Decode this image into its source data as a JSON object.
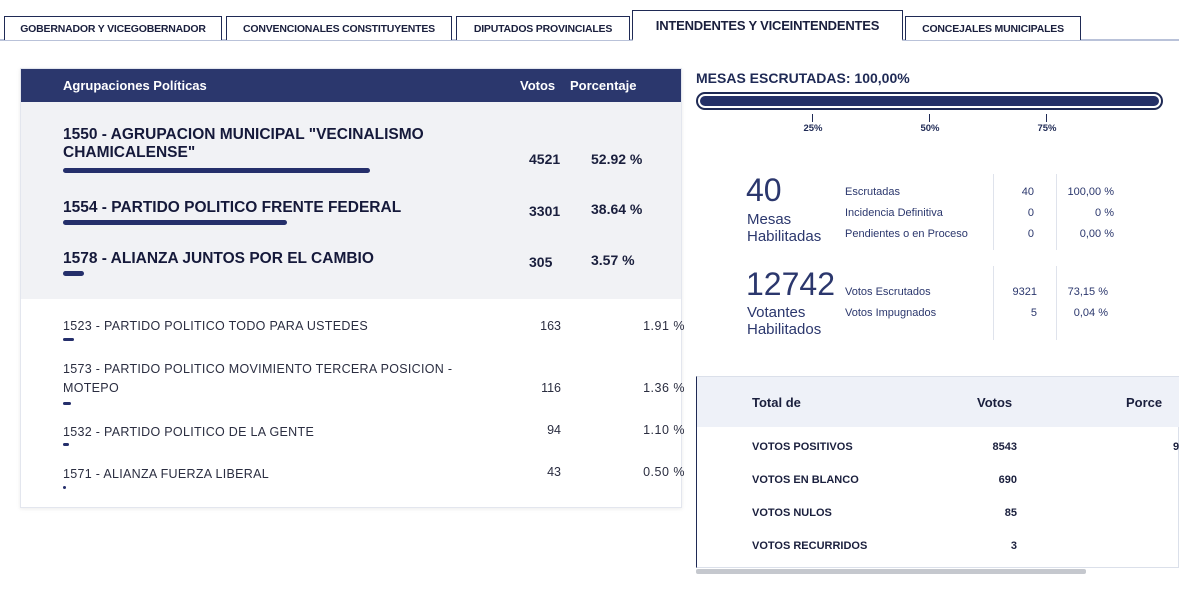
{
  "tabs": [
    {
      "label": "GOBERNADOR Y VICEGOBERNADOR",
      "active": false
    },
    {
      "label": "CONVENCIONALES CONSTITUYENTES",
      "active": false
    },
    {
      "label": "DIPUTADOS PROVINCIALES",
      "active": false
    },
    {
      "label": "INTENDENTES Y VICEINTENDENTES",
      "active": true
    },
    {
      "label": "CONCEJALES MUNICIPALES",
      "active": false
    }
  ],
  "results": {
    "headers": {
      "party": "Agrupaciones Políticas",
      "votes": "Votos",
      "percent": "Porcentaje"
    },
    "top": [
      {
        "name": "1550 - AGRUPACION MUNICIPAL \"VECINALISMO CHAMICALENSE\"",
        "votes": "4521",
        "percent": "52.92 %",
        "share": 52.92
      },
      {
        "name": "1554 - PARTIDO POLITICO FRENTE FEDERAL",
        "votes": "3301",
        "percent": "38.64 %",
        "share": 38.64
      },
      {
        "name": "1578 - ALIANZA JUNTOS POR EL CAMBIO",
        "votes": "305",
        "percent": "3.57 %",
        "share": 3.57
      }
    ],
    "others": [
      {
        "name": "1523 - PARTIDO POLITICO TODO PARA USTEDES",
        "votes": "163",
        "percent": "1.91 %",
        "share": 1.91
      },
      {
        "name": "1573 - PARTIDO POLITICO MOVIMIENTO TERCERA POSICION - MOTEPO",
        "votes": "116",
        "percent": "1.36 %",
        "share": 1.36
      },
      {
        "name": "1532 - PARTIDO POLITICO DE LA GENTE",
        "votes": "94",
        "percent": "1.10 %",
        "share": 1.1
      },
      {
        "name": "1571 - ALIANZA FUERZA LIBERAL",
        "votes": "43",
        "percent": "0.50 %",
        "share": 0.5
      }
    ]
  },
  "mesas": {
    "title": "MESAS ESCRUTADAS: 100,00%",
    "progress": 100,
    "ticks": [
      "25%",
      "50%",
      "75%"
    ]
  },
  "stats": {
    "mesas_total": "40",
    "mesas_label": "Mesas Habilitadas",
    "mesas_rows": [
      {
        "label": "Escrutadas",
        "value": "40",
        "percent": "100,00 %"
      },
      {
        "label": "Incidencia Definitiva",
        "value": "0",
        "percent": "0 %"
      },
      {
        "label": "Pendientes o en Proceso",
        "value": "0",
        "percent": "0,00 %"
      }
    ],
    "votantes_total": "12742",
    "votantes_label": "Votantes Habilitados",
    "votantes_rows": [
      {
        "label": "Votos Escrutados",
        "value": "9321",
        "percent": "73,15 %"
      },
      {
        "label": "Votos Impugnados",
        "value": "5",
        "percent": "0,04 %"
      }
    ]
  },
  "totals": {
    "headers": {
      "type": "Total de",
      "votes": "Votos",
      "percent": "Porce"
    },
    "rows": [
      {
        "label": "VOTOS POSITIVOS",
        "votes": "8543",
        "percent": "9"
      },
      {
        "label": "VOTOS EN BLANCO",
        "votes": "690",
        "percent": ""
      },
      {
        "label": "VOTOS NULOS",
        "votes": "85",
        "percent": ""
      },
      {
        "label": "VOTOS RECURRIDOS",
        "votes": "3",
        "percent": ""
      }
    ]
  },
  "colors": {
    "accent": "#2b376d",
    "bar": "#252f6b"
  }
}
